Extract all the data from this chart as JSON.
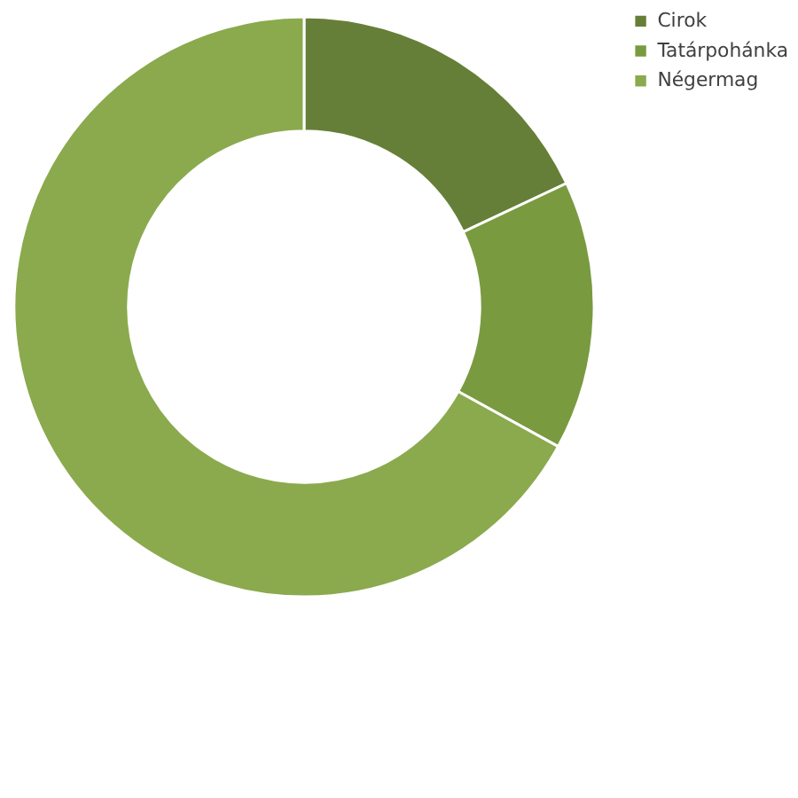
{
  "chart_data": {
    "type": "donut",
    "categories": [
      "Cirok",
      "Tatárpohánka",
      "Négermag"
    ],
    "values": [
      18,
      15,
      67
    ],
    "colors": [
      "#667f38",
      "#7a9a40",
      "#8aaa4d"
    ],
    "legend": "right"
  }
}
